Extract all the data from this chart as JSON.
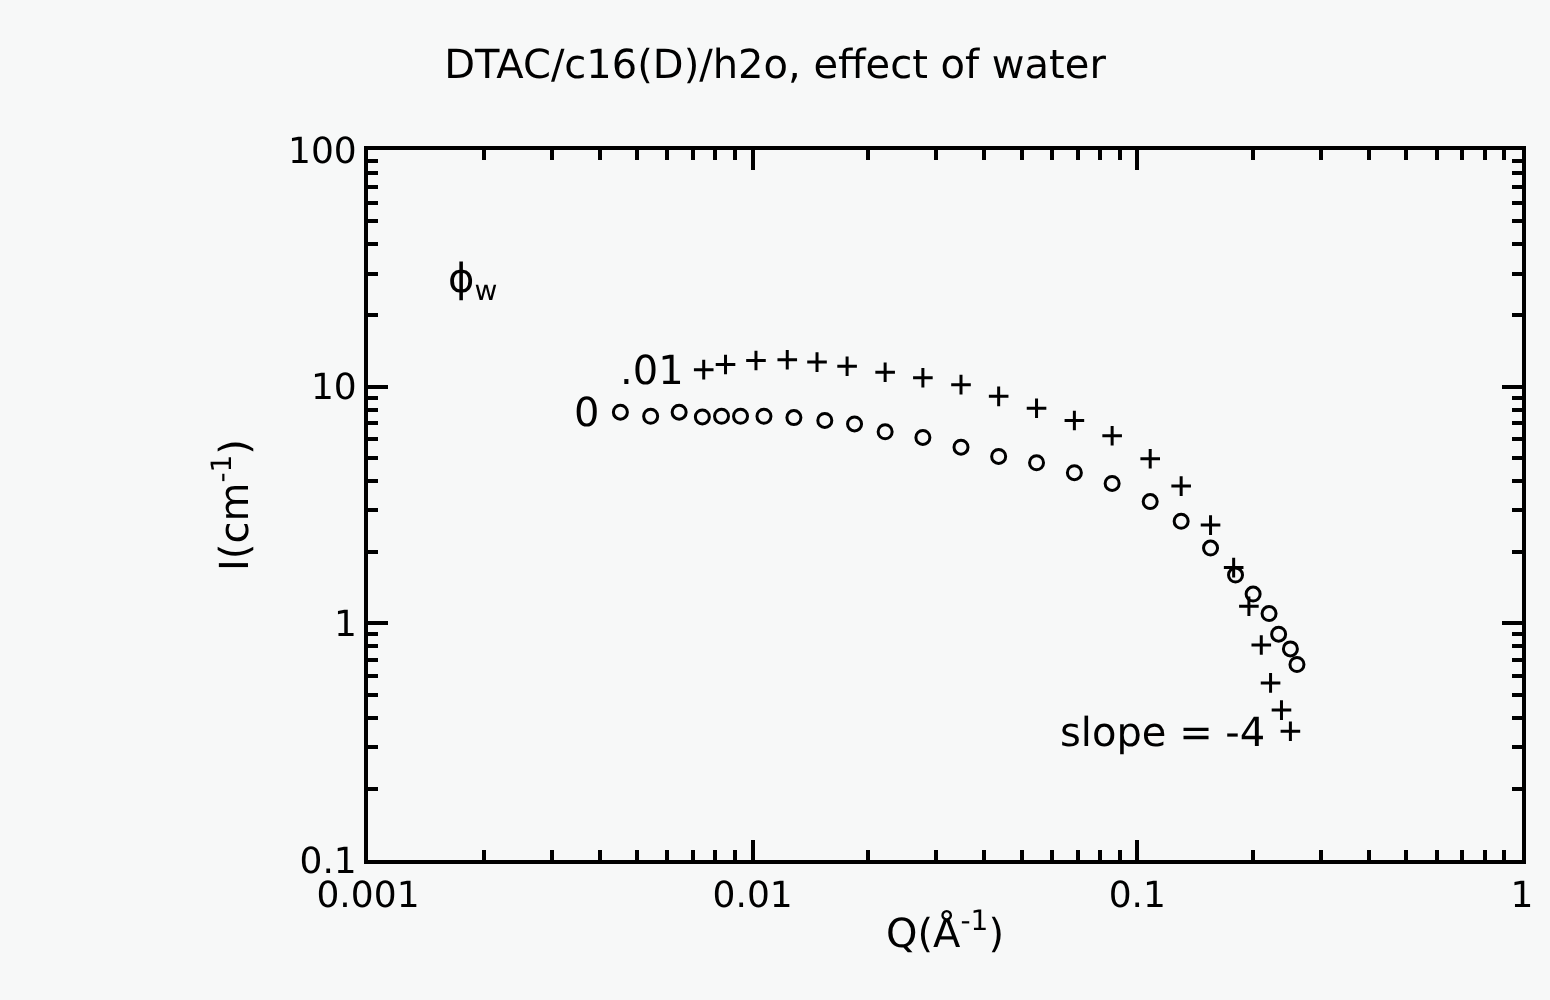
{
  "chart_data": {
    "type": "scatter",
    "title": "DTAC/c16(D)/h2o, effect of water",
    "xlabel": "Q(Å$^{-1}$)",
    "ylabel": "I(cm$^{-1}$)",
    "log": "xy",
    "xlim": [
      0.001,
      1
    ],
    "ylim": [
      0.1,
      100
    ],
    "xticks": [
      0.001,
      0.01,
      0.1,
      1
    ],
    "yticks": [
      0.1,
      1,
      10,
      100
    ],
    "grid": false,
    "legend": false,
    "legend_title": "ϕ$_{w}$",
    "annotations": [
      {
        "text": "slope = -4",
        "x": 0.25,
        "y": 0.35
      }
    ],
    "series": [
      {
        "name": ".01",
        "color": "#000000",
        "marker": "cross",
        "x": [
          0.00746,
          0.0085,
          0.0102,
          0.0123,
          0.0147,
          0.0176,
          0.0221,
          0.0277,
          0.0348,
          0.0436,
          0.0547,
          0.0686,
          0.086,
          0.108,
          0.13,
          0.155,
          0.178,
          0.195,
          0.21,
          0.222,
          0.237,
          0.25
        ],
        "values": [
          11.8,
          12.4,
          12.9,
          13.0,
          12.7,
          12.2,
          11.5,
          10.9,
          10.2,
          9.1,
          8.1,
          7.2,
          6.2,
          4.96,
          3.8,
          2.6,
          1.72,
          1.18,
          0.81,
          0.56,
          0.43,
          0.35
        ]
      },
      {
        "name": "0",
        "color": "#000000",
        "marker": "circle",
        "x": [
          0.00453,
          0.00543,
          0.00644,
          0.0074,
          0.0083,
          0.0093,
          0.0107,
          0.0128,
          0.0154,
          0.0184,
          0.0221,
          0.0277,
          0.0348,
          0.0436,
          0.0547,
          0.0686,
          0.086,
          0.108,
          0.13,
          0.155,
          0.18,
          0.2,
          0.22,
          0.233,
          0.25,
          0.26
        ],
        "values": [
          7.8,
          7.5,
          7.8,
          7.45,
          7.5,
          7.5,
          7.5,
          7.4,
          7.2,
          6.96,
          6.45,
          6.1,
          5.55,
          5.07,
          4.77,
          4.33,
          3.9,
          3.27,
          2.7,
          2.08,
          1.6,
          1.33,
          1.1,
          0.9,
          0.78,
          0.67
        ]
      }
    ]
  }
}
